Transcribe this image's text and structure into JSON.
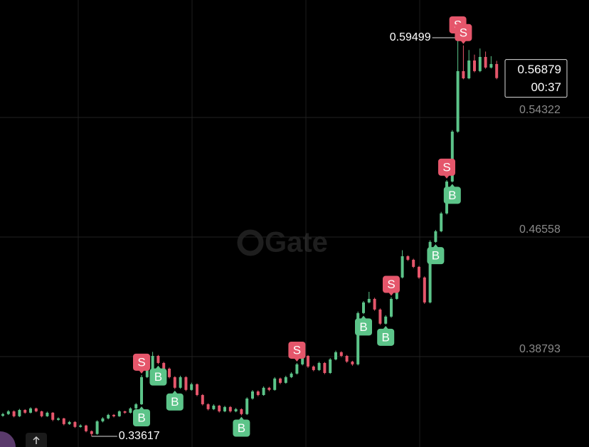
{
  "chart_data": {
    "type": "candlestick",
    "watermark": "Gate",
    "ylim": [
      0.32924,
      0.61947
    ],
    "yticks": [
      0.38793,
      0.46558,
      0.54322
    ],
    "grid": true,
    "up_color": "#5cc489",
    "down_color": "#e5566b",
    "candles": [
      [
        0.3495,
        0.3515,
        0.3488,
        0.3506
      ],
      [
        0.3506,
        0.3532,
        0.35,
        0.3524
      ],
      [
        0.3524,
        0.353,
        0.3485,
        0.3492
      ],
      [
        0.3492,
        0.354,
        0.3487,
        0.3533
      ],
      [
        0.3533,
        0.3538,
        0.3508,
        0.3515
      ],
      [
        0.3515,
        0.355,
        0.351,
        0.3543
      ],
      [
        0.3543,
        0.3548,
        0.3518,
        0.3524
      ],
      [
        0.3524,
        0.3528,
        0.3485,
        0.3492
      ],
      [
        0.3492,
        0.3522,
        0.3488,
        0.3515
      ],
      [
        0.3515,
        0.3519,
        0.346,
        0.3469
      ],
      [
        0.3469,
        0.3485,
        0.3462,
        0.3478
      ],
      [
        0.3478,
        0.3482,
        0.3433,
        0.3441
      ],
      [
        0.3441,
        0.3462,
        0.3436,
        0.3455
      ],
      [
        0.3455,
        0.346,
        0.3416,
        0.3423
      ],
      [
        0.3423,
        0.344,
        0.3418,
        0.3432
      ],
      [
        0.3432,
        0.3437,
        0.3388,
        0.3395
      ],
      [
        0.3395,
        0.34,
        0.33617,
        0.3377
      ],
      [
        0.3377,
        0.3466,
        0.3372,
        0.3459
      ],
      [
        0.3459,
        0.3486,
        0.3452,
        0.3478
      ],
      [
        0.3478,
        0.3508,
        0.3472,
        0.3501
      ],
      [
        0.3501,
        0.3506,
        0.3485,
        0.3492
      ],
      [
        0.3492,
        0.353,
        0.3488,
        0.3524
      ],
      [
        0.3524,
        0.3528,
        0.3508,
        0.3515
      ],
      [
        0.3515,
        0.355,
        0.351,
        0.3543
      ],
      [
        0.3543,
        0.3578,
        0.3538,
        0.357
      ],
      [
        0.357,
        0.376,
        0.3565,
        0.3746
      ],
      [
        0.3746,
        0.3805,
        0.374,
        0.3792
      ],
      [
        0.3792,
        0.391,
        0.3785,
        0.3884
      ],
      [
        0.3884,
        0.389,
        0.383,
        0.3838
      ],
      [
        0.3838,
        0.3845,
        0.3792,
        0.3801
      ],
      [
        0.3801,
        0.3808,
        0.3738,
        0.3746
      ],
      [
        0.3746,
        0.3752,
        0.3668,
        0.3677
      ],
      [
        0.3677,
        0.3755,
        0.367,
        0.3746
      ],
      [
        0.3746,
        0.3752,
        0.3655,
        0.3663
      ],
      [
        0.3663,
        0.371,
        0.3658,
        0.37
      ],
      [
        0.37,
        0.3705,
        0.3622,
        0.363
      ],
      [
        0.363,
        0.3636,
        0.3562,
        0.357
      ],
      [
        0.357,
        0.3576,
        0.353,
        0.3538
      ],
      [
        0.3538,
        0.357,
        0.3532,
        0.3561
      ],
      [
        0.3561,
        0.3566,
        0.3516,
        0.3524
      ],
      [
        0.3524,
        0.356,
        0.3518,
        0.3552
      ],
      [
        0.3552,
        0.3558,
        0.3516,
        0.3524
      ],
      [
        0.3524,
        0.3546,
        0.3518,
        0.3538
      ],
      [
        0.3538,
        0.3543,
        0.3498,
        0.3506
      ],
      [
        0.3506,
        0.3615,
        0.35,
        0.3607
      ],
      [
        0.3607,
        0.3662,
        0.36,
        0.3653
      ],
      [
        0.3653,
        0.366,
        0.3622,
        0.363
      ],
      [
        0.363,
        0.3686,
        0.3625,
        0.3677
      ],
      [
        0.3677,
        0.3683,
        0.3655,
        0.3663
      ],
      [
        0.3663,
        0.3746,
        0.3658,
        0.3737
      ],
      [
        0.3737,
        0.3743,
        0.37,
        0.3709
      ],
      [
        0.3709,
        0.3755,
        0.3703,
        0.3746
      ],
      [
        0.3746,
        0.3778,
        0.374,
        0.3769
      ],
      [
        0.3769,
        0.3838,
        0.3763,
        0.3829
      ],
      [
        0.3829,
        0.3895,
        0.3822,
        0.3884
      ],
      [
        0.3884,
        0.389,
        0.3806,
        0.3815
      ],
      [
        0.3815,
        0.3822,
        0.3784,
        0.3792
      ],
      [
        0.3792,
        0.3846,
        0.3786,
        0.3838
      ],
      [
        0.3838,
        0.3844,
        0.3765,
        0.3773
      ],
      [
        0.3773,
        0.387,
        0.3767,
        0.3861
      ],
      [
        0.3861,
        0.3918,
        0.3855,
        0.3908
      ],
      [
        0.3908,
        0.3914,
        0.3876,
        0.3884
      ],
      [
        0.3884,
        0.389,
        0.3839,
        0.3847
      ],
      [
        0.3847,
        0.3852,
        0.382,
        0.3829
      ],
      [
        0.3829,
        0.4172,
        0.3822,
        0.4162
      ],
      [
        0.4162,
        0.424,
        0.4155,
        0.4231
      ],
      [
        0.4231,
        0.43,
        0.4225,
        0.4254
      ],
      [
        0.4254,
        0.4262,
        0.4177,
        0.4185
      ],
      [
        0.4185,
        0.4192,
        0.4085,
        0.4093
      ],
      [
        0.4093,
        0.4148,
        0.4088,
        0.4139
      ],
      [
        0.4139,
        0.4265,
        0.4132,
        0.4254
      ],
      [
        0.4254,
        0.4402,
        0.4248,
        0.4393
      ],
      [
        0.4393,
        0.457,
        0.4387,
        0.4531
      ],
      [
        0.4531,
        0.4537,
        0.45,
        0.4508
      ],
      [
        0.4508,
        0.4515,
        0.4454,
        0.4462
      ],
      [
        0.4462,
        0.4468,
        0.4385,
        0.4393
      ],
      [
        0.4393,
        0.44,
        0.4222,
        0.4231
      ],
      [
        0.4231,
        0.4634,
        0.4225,
        0.4624
      ],
      [
        0.4624,
        0.4702,
        0.4618,
        0.4693
      ],
      [
        0.4693,
        0.4819,
        0.4687,
        0.4809
      ],
      [
        0.4809,
        0.5026,
        0.4802,
        0.5016
      ],
      [
        0.5016,
        0.535,
        0.501,
        0.534
      ],
      [
        0.534,
        0.59499,
        0.5333,
        0.5733
      ],
      [
        0.5733,
        0.59,
        0.568,
        0.5686
      ],
      [
        0.5686,
        0.587,
        0.568,
        0.5802
      ],
      [
        0.5802,
        0.584,
        0.5725,
        0.5733
      ],
      [
        0.5733,
        0.588,
        0.5726,
        0.5825
      ],
      [
        0.5825,
        0.586,
        0.5748,
        0.5756
      ],
      [
        0.5756,
        0.583,
        0.575,
        0.5779
      ],
      [
        0.5779,
        0.58,
        0.568,
        0.56879
      ]
    ],
    "markers": [
      {
        "candle": 25,
        "label": "S",
        "place": "above",
        "color": "#e5566b"
      },
      {
        "candle": 25,
        "label": "B",
        "place": "below",
        "color": "#5cc489"
      },
      {
        "candle": 28,
        "label": "B",
        "place": "below",
        "color": "#5cc489"
      },
      {
        "candle": 31,
        "label": "B",
        "place": "below",
        "color": "#5cc489"
      },
      {
        "candle": 43,
        "label": "B",
        "place": "below",
        "color": "#5cc489"
      },
      {
        "candle": 53,
        "label": "S",
        "place": "above",
        "color": "#e5566b"
      },
      {
        "candle": 65,
        "label": "B",
        "place": "below",
        "color": "#5cc489"
      },
      {
        "candle": 69,
        "label": "B",
        "place": "below",
        "color": "#5cc489"
      },
      {
        "candle": 70,
        "label": "S",
        "place": "above",
        "color": "#e5566b"
      },
      {
        "candle": 78,
        "label": "B",
        "place": "below",
        "color": "#5cc489"
      },
      {
        "candle": 80,
        "label": "S",
        "place": "above",
        "color": "#e5566b"
      },
      {
        "candle": 81,
        "label": "B",
        "place": "below",
        "color": "#5cc489"
      },
      {
        "candle": 82,
        "label": "S",
        "place": "above",
        "color": "#e5566b"
      },
      {
        "candle": 83,
        "label": "S",
        "place": "above",
        "color": "#e5566b"
      }
    ],
    "countdown": "00:37"
  }
}
